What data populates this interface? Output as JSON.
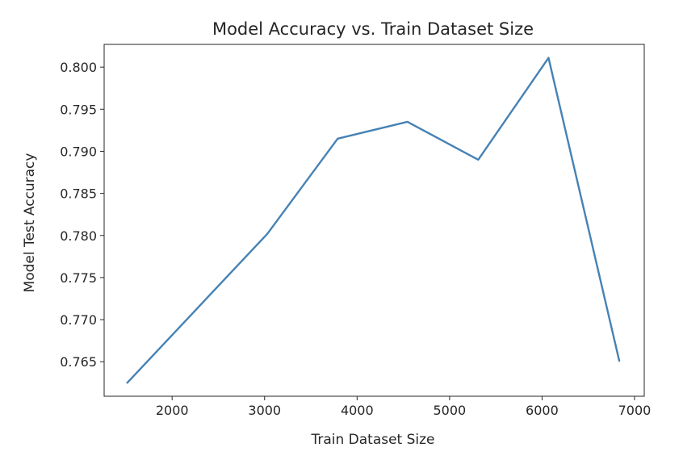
{
  "chart_data": {
    "type": "line",
    "title": "Model Accuracy vs. Train Dataset Size",
    "xlabel": "Train Dataset Size",
    "ylabel": "Model Test Accuracy",
    "xlim": [
      1265,
      7105
    ],
    "ylim": [
      0.7609,
      0.8027
    ],
    "xticks": [
      2000,
      3000,
      4000,
      5000,
      6000,
      7000
    ],
    "xtick_labels": [
      "2000",
      "3000",
      "4000",
      "5000",
      "6000",
      "7000"
    ],
    "yticks": [
      0.765,
      0.77,
      0.775,
      0.78,
      0.785,
      0.79,
      0.795,
      0.8
    ],
    "ytick_labels": [
      "0.765",
      "0.770",
      "0.775",
      "0.780",
      "0.785",
      "0.790",
      "0.795",
      "0.800"
    ],
    "grid": false,
    "series": [
      {
        "color": "#4682b4",
        "x": [
          1515,
          3030,
          3790,
          4545,
          5310,
          6070,
          6835
        ],
        "y": [
          0.7625,
          0.7802,
          0.7915,
          0.7935,
          0.789,
          0.8011,
          0.7651
        ]
      }
    ]
  }
}
